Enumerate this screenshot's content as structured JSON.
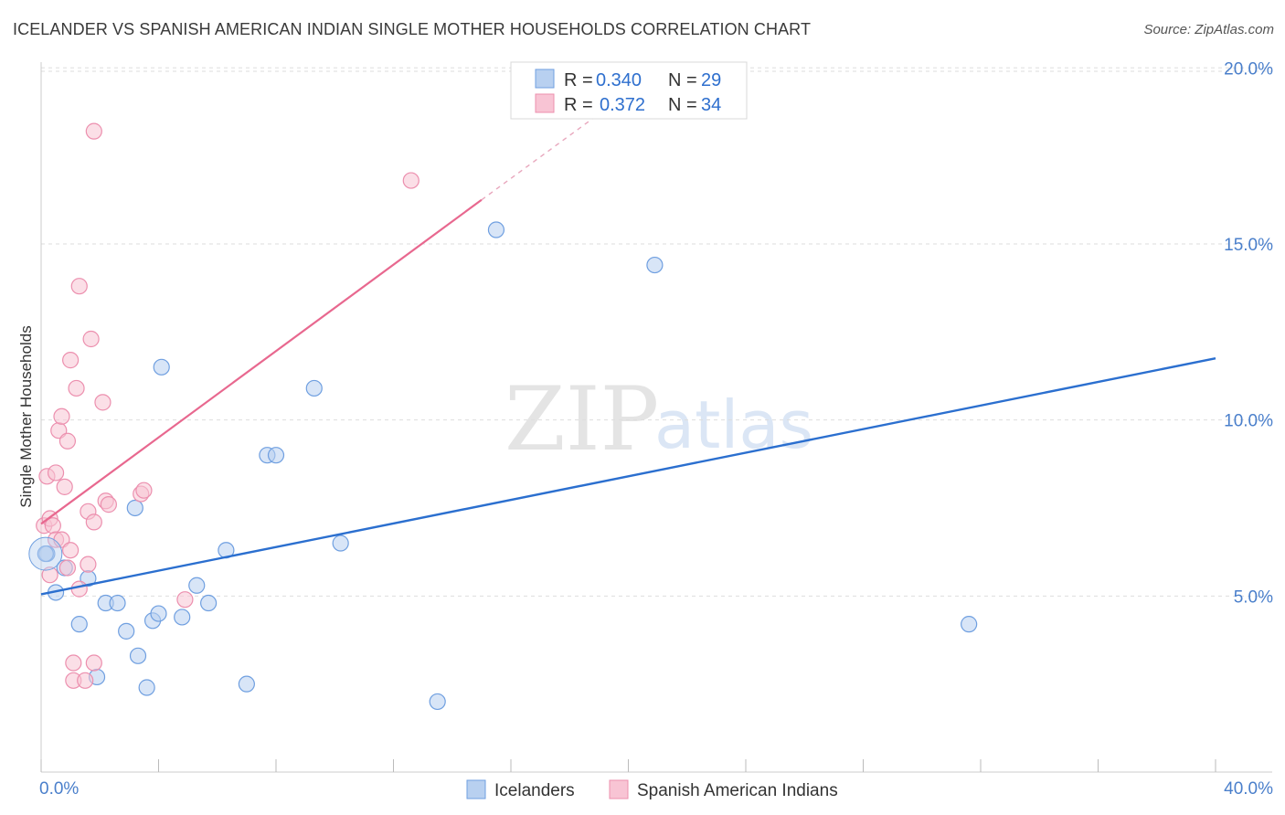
{
  "title": "ICELANDER VS SPANISH AMERICAN INDIAN SINGLE MOTHER HOUSEHOLDS CORRELATION CHART",
  "source": "Source: ZipAtlas.com",
  "watermark": {
    "zip": "ZIP",
    "atlas": "atlas"
  },
  "colors": {
    "blue_fill": "#b8d0f0",
    "blue_stroke": "#6f9fe0",
    "blue_line": "#2b6fcf",
    "pink_fill": "#f8c4d4",
    "pink_stroke": "#ec8fae",
    "pink_line": "#e8688f",
    "grid": "#dddddd",
    "axis_label": "#4a7fcb"
  },
  "legend": {
    "rows": [
      {
        "r_label": "R = ",
        "r_value": "0.340",
        "n_label": "N = ",
        "n_value": "29"
      },
      {
        "r_label": "R = ",
        "r_value": "0.372",
        "n_label": "N = ",
        "n_value": "34"
      }
    ]
  },
  "chart_data": {
    "type": "scatter",
    "title": "ICELANDER VS SPANISH AMERICAN INDIAN SINGLE MOTHER HOUSEHOLDS CORRELATION CHART",
    "xlabel": "",
    "ylabel": "Single Mother Households",
    "xlim": [
      0,
      40
    ],
    "ylim": [
      0,
      20.5
    ],
    "x_tick_labels": [
      "0.0%",
      "40.0%"
    ],
    "y_ticks": [
      5,
      10,
      15,
      20
    ],
    "y_tick_labels": [
      "5.0%",
      "10.0%",
      "15.0%",
      "20.0%"
    ],
    "grid": true,
    "series": [
      {
        "name": "Icelanders",
        "r": 0.34,
        "n": 29,
        "points": [
          [
            0.2,
            6.2
          ],
          [
            0.5,
            5.1
          ],
          [
            0.8,
            5.8
          ],
          [
            1.3,
            4.2
          ],
          [
            1.6,
            5.5
          ],
          [
            1.9,
            2.7
          ],
          [
            2.2,
            4.8
          ],
          [
            2.6,
            4.8
          ],
          [
            2.9,
            4.0
          ],
          [
            3.2,
            7.5
          ],
          [
            3.3,
            3.3
          ],
          [
            3.6,
            2.4
          ],
          [
            3.8,
            4.3
          ],
          [
            4.0,
            4.5
          ],
          [
            4.1,
            11.5
          ],
          [
            4.8,
            4.4
          ],
          [
            5.3,
            5.3
          ],
          [
            5.7,
            4.8
          ],
          [
            6.3,
            6.3
          ],
          [
            7.0,
            2.5
          ],
          [
            7.7,
            9.0
          ],
          [
            8.0,
            9.0
          ],
          [
            9.3,
            10.9
          ],
          [
            10.2,
            6.5
          ],
          [
            13.5,
            2.0
          ],
          [
            15.5,
            15.4
          ],
          [
            20.9,
            14.4
          ],
          [
            31.6,
            4.2
          ],
          [
            0.15,
            6.2
          ]
        ],
        "trend": {
          "x0": 0,
          "y0": 5.05,
          "x1": 40,
          "y1": 11.75
        }
      },
      {
        "name": "Spanish American Indians",
        "r": 0.372,
        "n": 34,
        "points": [
          [
            0.1,
            7.0
          ],
          [
            0.2,
            8.4
          ],
          [
            0.3,
            7.2
          ],
          [
            0.3,
            5.6
          ],
          [
            0.4,
            7.0
          ],
          [
            0.5,
            8.5
          ],
          [
            0.5,
            6.6
          ],
          [
            0.6,
            9.7
          ],
          [
            0.7,
            10.1
          ],
          [
            0.7,
            6.6
          ],
          [
            0.8,
            8.1
          ],
          [
            0.9,
            9.4
          ],
          [
            0.9,
            5.8
          ],
          [
            1.0,
            11.7
          ],
          [
            1.0,
            6.3
          ],
          [
            1.1,
            3.1
          ],
          [
            1.1,
            2.6
          ],
          [
            1.2,
            10.9
          ],
          [
            1.3,
            13.8
          ],
          [
            1.3,
            5.2
          ],
          [
            1.5,
            2.6
          ],
          [
            1.6,
            7.4
          ],
          [
            1.6,
            5.9
          ],
          [
            1.7,
            12.3
          ],
          [
            1.8,
            3.1
          ],
          [
            1.8,
            7.1
          ],
          [
            1.8,
            18.2
          ],
          [
            2.1,
            10.5
          ],
          [
            2.2,
            7.7
          ],
          [
            2.3,
            7.6
          ],
          [
            3.4,
            7.9
          ],
          [
            3.5,
            8.0
          ],
          [
            4.9,
            4.9
          ],
          [
            12.6,
            16.8
          ]
        ],
        "trend": {
          "x0": 0,
          "y0": 7.05,
          "x1": 15.0,
          "y1": 16.25
        },
        "trend_dashed": {
          "x0": 15.0,
          "y0": 16.25,
          "x1": 20.0,
          "y1": 19.3
        }
      }
    ]
  }
}
